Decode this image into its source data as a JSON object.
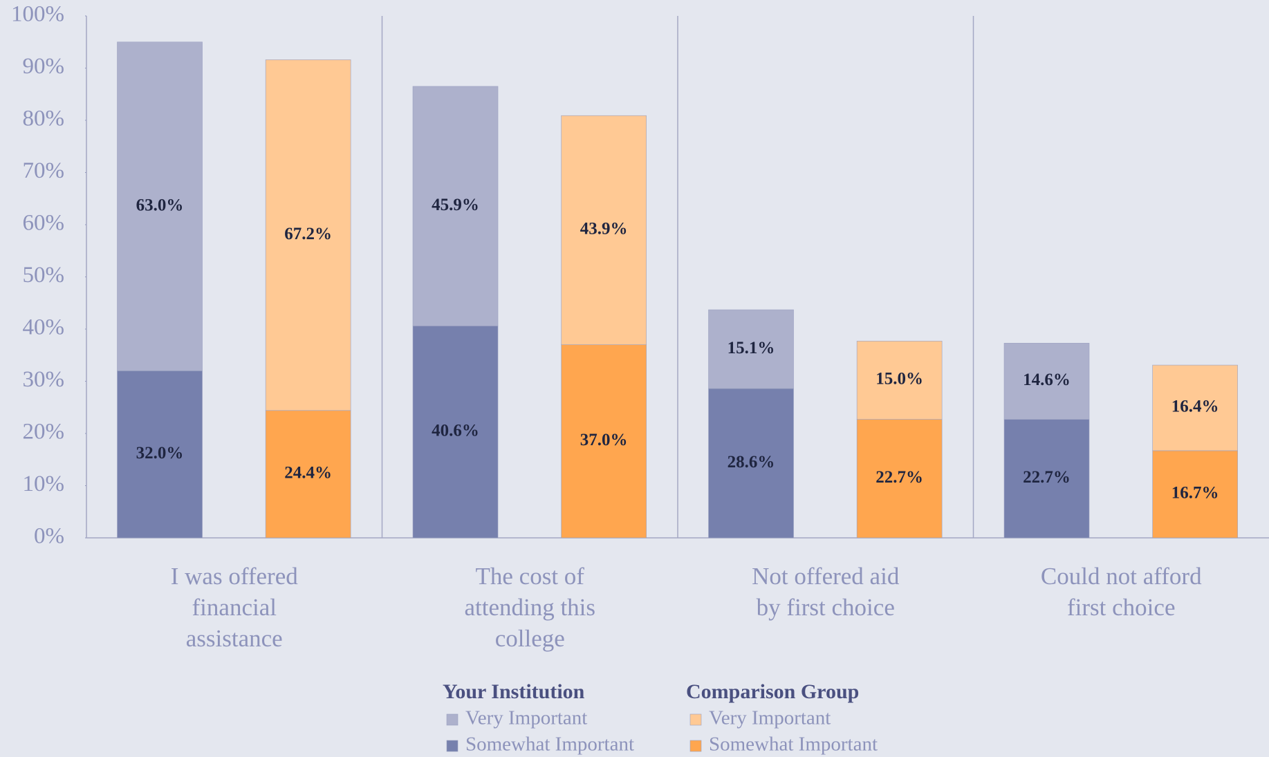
{
  "chart_data": {
    "type": "stacked_bar",
    "categories": [
      "I was offered financial assistance",
      "The cost of attending this college",
      "Not offered aid by first choice",
      "Could not afford first choice"
    ],
    "groups": [
      "Your Institution",
      "Comparison Group"
    ],
    "series": [
      {
        "name": "Somewhat Important",
        "stack": 0,
        "color": "#7680ad",
        "values": [
          32.0,
          40.6,
          28.6,
          22.7
        ],
        "value_labels": [
          "32.0%",
          "40.6%",
          "28.6%",
          "22.7%"
        ]
      },
      {
        "name": "Very Important",
        "stack": 0,
        "color": "#adb1cc",
        "values": [
          63.0,
          45.9,
          15.1,
          14.6
        ],
        "value_labels": [
          "63.0%",
          "45.9%",
          "15.1%",
          "14.6%"
        ]
      },
      {
        "name": "Somewhat Important",
        "stack": 1,
        "color": "#ffa64f",
        "values": [
          24.4,
          37.0,
          22.7,
          16.7
        ],
        "value_labels": [
          "24.4%",
          "37.0%",
          "22.7%",
          "16.7%"
        ]
      },
      {
        "name": "Very Important",
        "stack": 1,
        "color": "#ffc994",
        "values": [
          67.2,
          43.9,
          15.0,
          16.4
        ],
        "value_labels": [
          "67.2%",
          "43.9%",
          "15.0%",
          "16.4%"
        ]
      }
    ],
    "ylim": [
      0,
      100
    ],
    "yticks": [
      {
        "value": 0,
        "label": "0%"
      },
      {
        "value": 10,
        "label": "10%"
      },
      {
        "value": 20,
        "label": "20%"
      },
      {
        "value": 30,
        "label": "30%"
      },
      {
        "value": 40,
        "label": "40%"
      },
      {
        "value": 50,
        "label": "50%"
      },
      {
        "value": 60,
        "label": "60%"
      },
      {
        "value": 70,
        "label": "70%"
      },
      {
        "value": 80,
        "label": "80%"
      },
      {
        "value": 90,
        "label": "90%"
      },
      {
        "value": 100,
        "label": "100%"
      }
    ]
  }
}
